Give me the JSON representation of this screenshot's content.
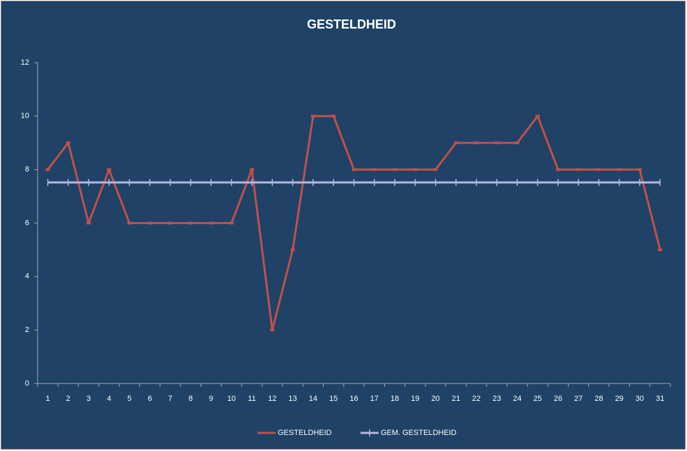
{
  "chart_data": {
    "type": "line",
    "title": "GESTELDHEID",
    "categories": [
      "1",
      "2",
      "3",
      "4",
      "5",
      "6",
      "7",
      "8",
      "9",
      "10",
      "11",
      "12",
      "13",
      "14",
      "15",
      "16",
      "17",
      "18",
      "19",
      "20",
      "21",
      "22",
      "23",
      "24",
      "25",
      "26",
      "27",
      "28",
      "29",
      "30",
      "31"
    ],
    "series": [
      {
        "name": "GESTELDHEID",
        "color": "#c0504d",
        "values": [
          8,
          9,
          6,
          8,
          6,
          6,
          6,
          6,
          6,
          6,
          8,
          2,
          5,
          10,
          10,
          8,
          8,
          8,
          8,
          8,
          9,
          9,
          9,
          9,
          10,
          8,
          8,
          8,
          8,
          8,
          5
        ]
      },
      {
        "name": "GEM. GESTELDHEID",
        "color": "#b7b7dd",
        "values": [
          7.52,
          7.52,
          7.52,
          7.52,
          7.52,
          7.52,
          7.52,
          7.52,
          7.52,
          7.52,
          7.52,
          7.52,
          7.52,
          7.52,
          7.52,
          7.52,
          7.52,
          7.52,
          7.52,
          7.52,
          7.52,
          7.52,
          7.52,
          7.52,
          7.52,
          7.52,
          7.52,
          7.52,
          7.52,
          7.52,
          7.52
        ]
      }
    ],
    "ylim": [
      0,
      12
    ],
    "yticks": [
      0,
      2,
      4,
      6,
      8,
      10,
      12
    ],
    "grid": false,
    "legend": "bottom"
  }
}
